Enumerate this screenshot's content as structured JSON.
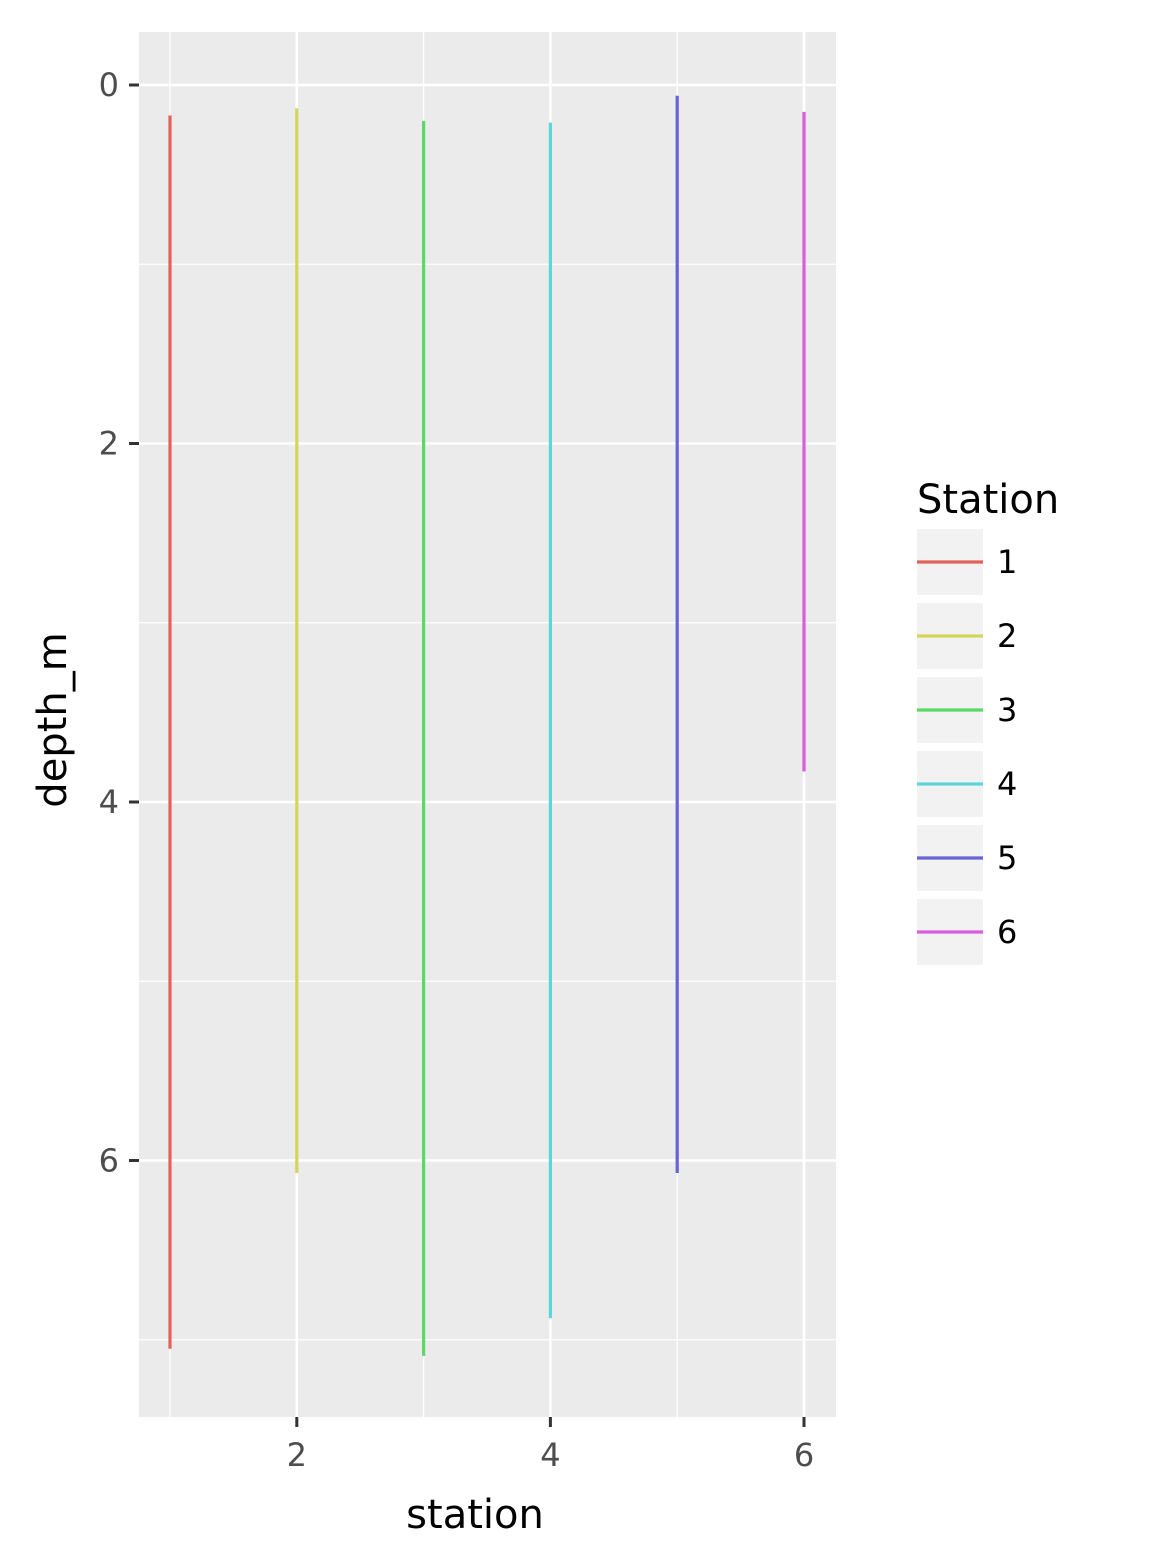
{
  "chart_data": {
    "type": "segment",
    "xlabel": "station",
    "ylabel": "depth_m",
    "xlim": [
      0.875,
      6.125
    ],
    "ylim": [
      0,
      7.3
    ],
    "y_reversed": true,
    "x_ticks": [
      2,
      4,
      6
    ],
    "x_minor_ticks": [
      1,
      3,
      5
    ],
    "y_ticks": [
      0,
      2,
      4,
      6
    ],
    "y_minor_ticks": [
      1,
      3,
      5,
      7
    ],
    "grid": true,
    "legend": {
      "title": "Station",
      "placement": "right",
      "entries": [
        "1",
        "2",
        "3",
        "4",
        "5",
        "6"
      ]
    },
    "series": [
      {
        "name": "1",
        "color": "#E2625A",
        "x": 1,
        "y_start": 0.17,
        "y_end": 7.05
      },
      {
        "name": "2",
        "color": "#D3D65A",
        "x": 2,
        "y_start": 0.13,
        "y_end": 6.07
      },
      {
        "name": "3",
        "color": "#5CD865",
        "x": 3,
        "y_start": 0.2,
        "y_end": 7.09
      },
      {
        "name": "4",
        "color": "#5BD6D9",
        "x": 4,
        "y_start": 0.21,
        "y_end": 6.88
      },
      {
        "name": "5",
        "color": "#6A63D6",
        "x": 5,
        "y_start": 0.06,
        "y_end": 6.07
      },
      {
        "name": "6",
        "color": "#D75FDD",
        "x": 6,
        "y_start": 0.15,
        "y_end": 3.83
      }
    ]
  }
}
